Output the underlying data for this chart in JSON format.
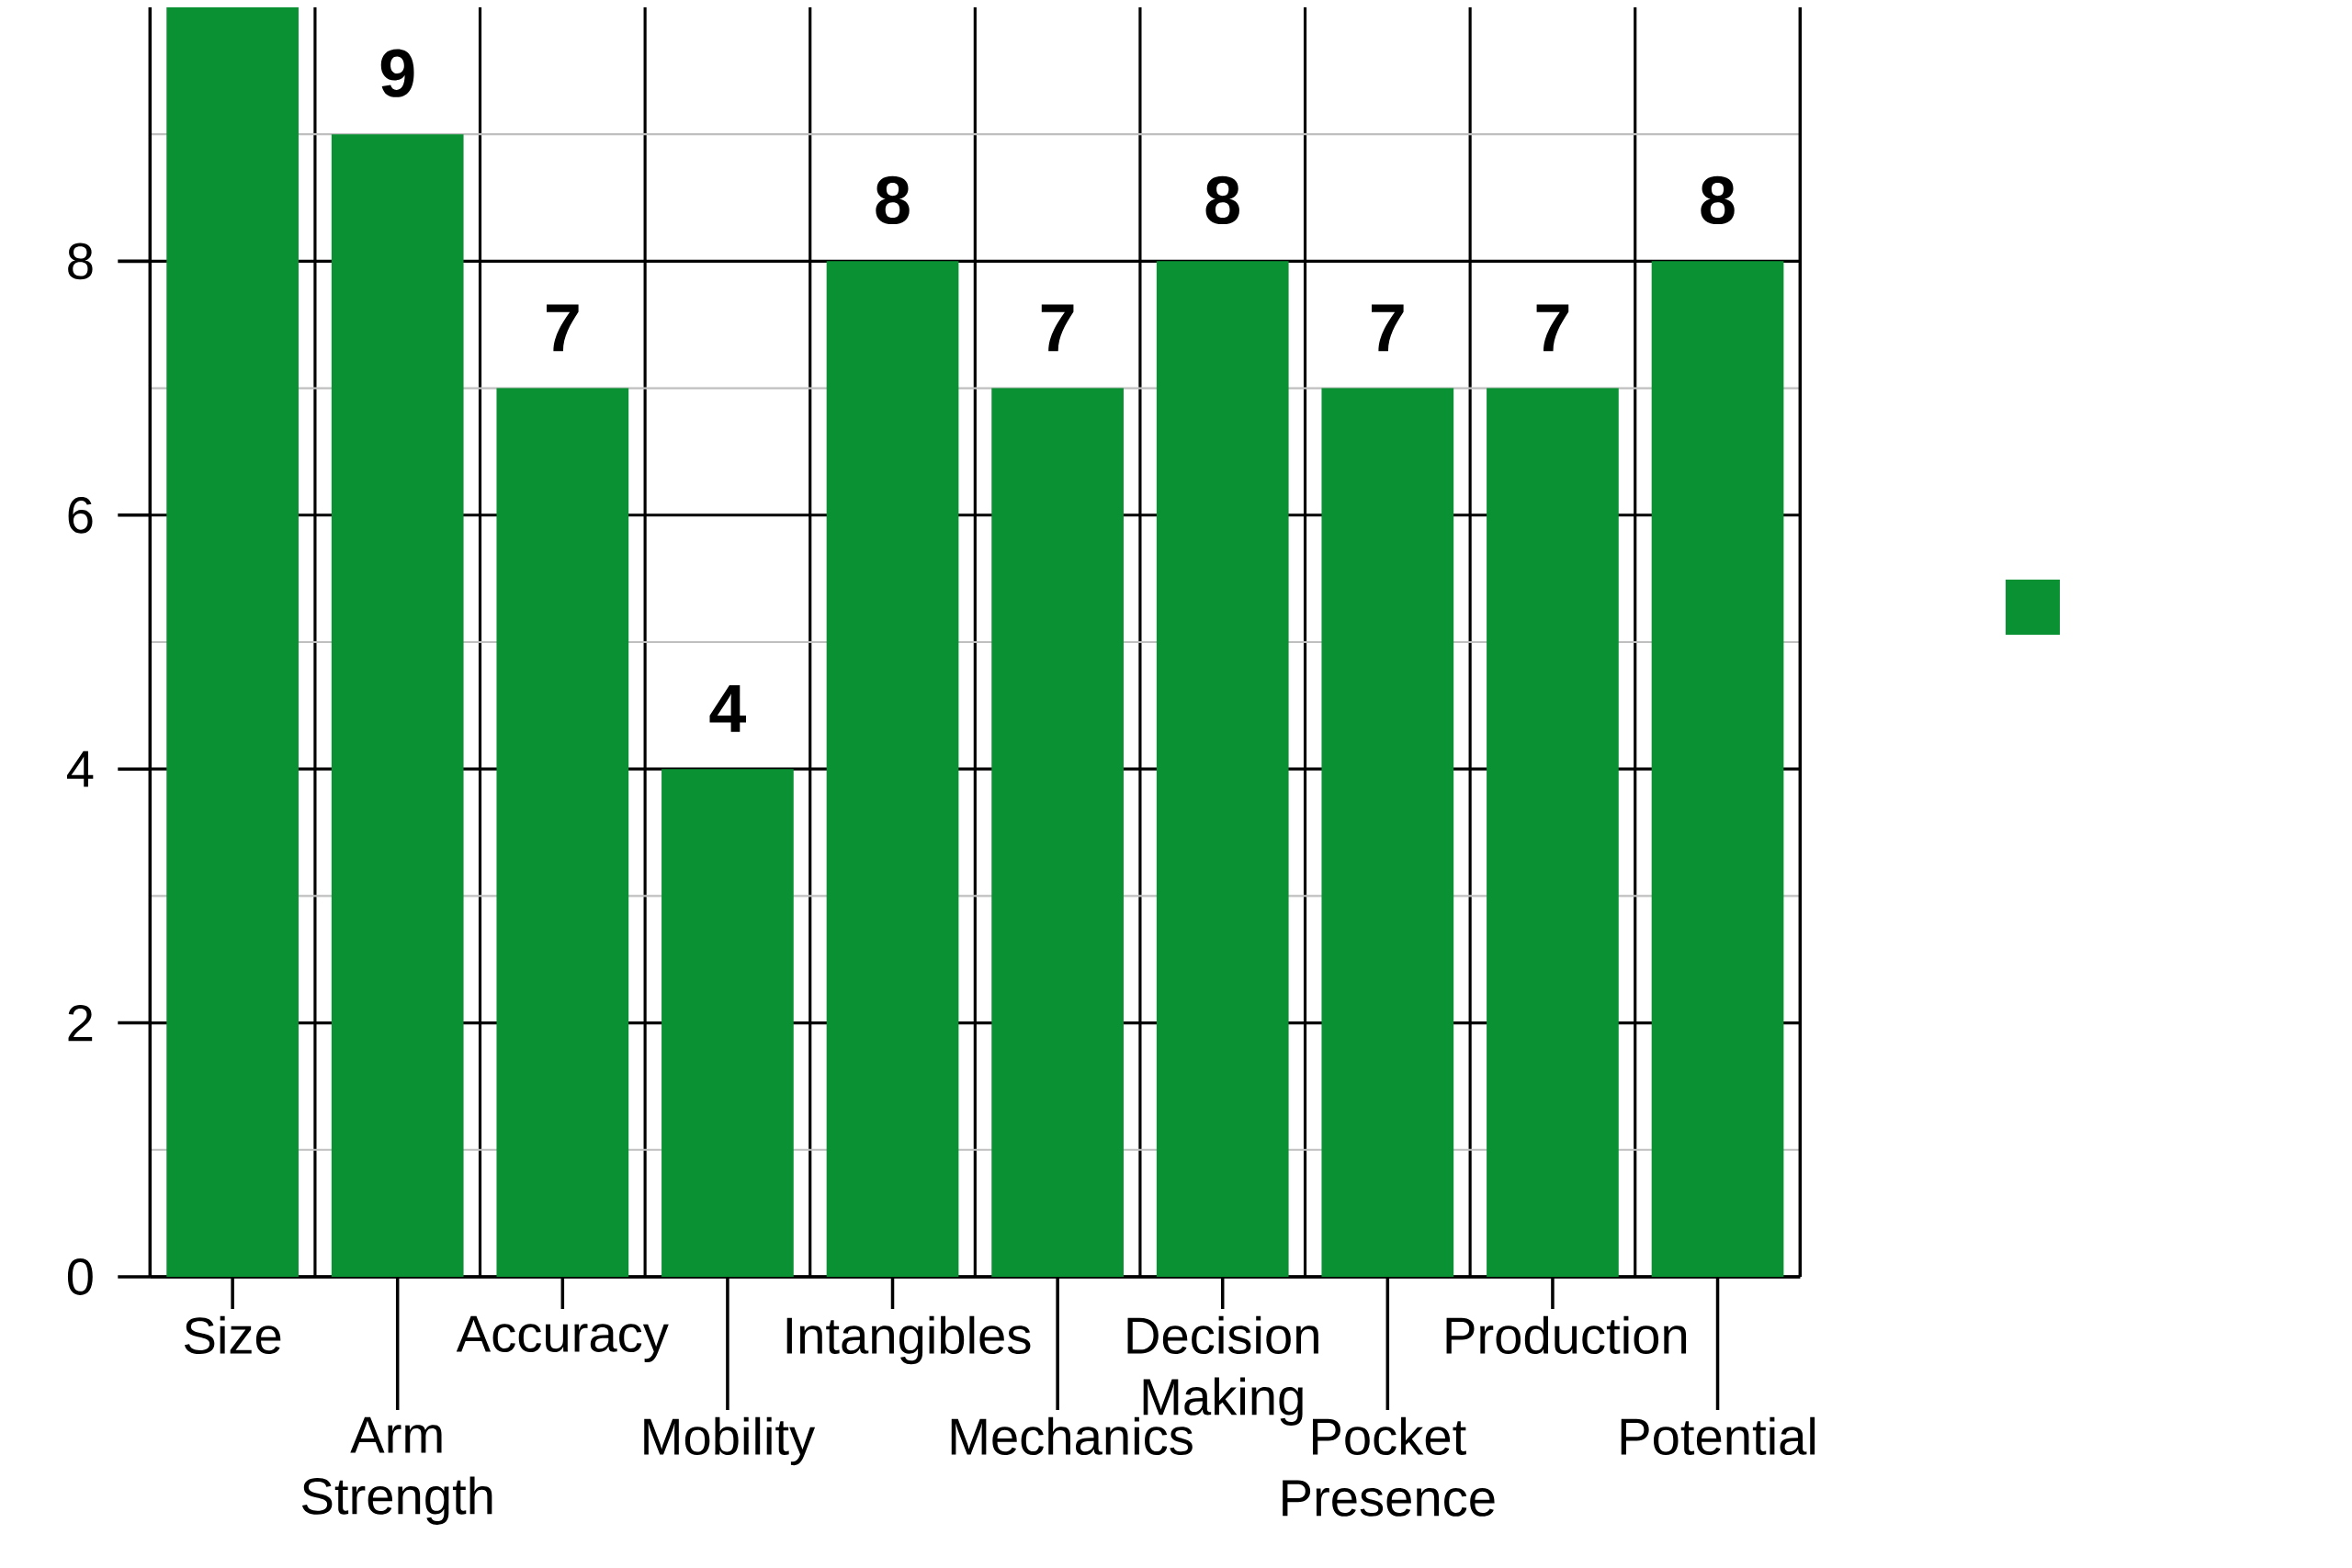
{
  "chart_data": {
    "type": "bar",
    "categories": [
      "Size",
      "Arm Strength",
      "Accuracy",
      "Mobility",
      "Intangibles",
      "Mechanics",
      "Decision Making",
      "Pocket Presence",
      "Production",
      "Potential"
    ],
    "values": [
      10,
      9,
      7,
      4,
      8,
      7,
      8,
      7,
      7,
      8
    ],
    "value_labels": [
      null,
      "9",
      "7",
      "4",
      "8",
      "7",
      "8",
      "7",
      "7",
      "8"
    ],
    "color": "#0a9133",
    "ylim": [
      0,
      10
    ],
    "yticks": [
      0,
      {
        "value": 1,
        "label": null
      },
      2,
      {
        "value": 3,
        "label": null
      },
      4,
      {
        "value": 5,
        "label": null
      },
      6,
      {
        "value": 7,
        "label": null
      },
      8,
      {
        "value": 9,
        "label": null
      }
    ],
    "grid": true
  }
}
